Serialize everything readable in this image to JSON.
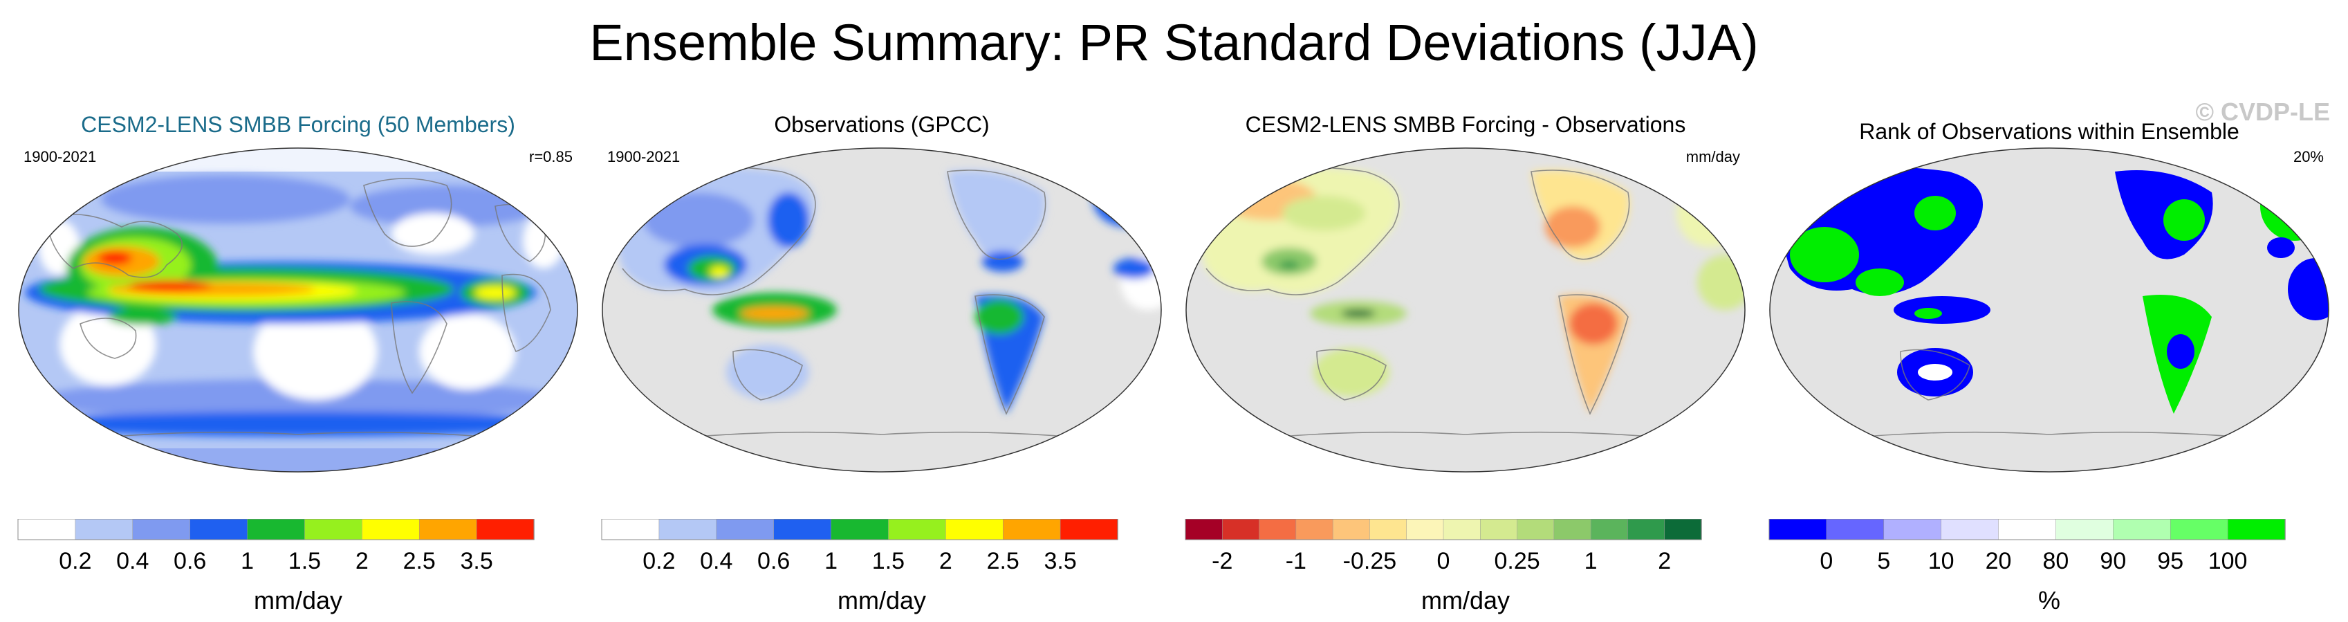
{
  "title": "Ensemble Summary: PR Standard Deviations (JJA)",
  "watermark": "© CVDP-LE",
  "colors": {
    "land_gray": "#e3e3e3",
    "coast": "#777777",
    "model_accent": "#1a6b8a"
  },
  "panels": [
    {
      "id": "model",
      "title": "CESM2-LENS SMBB Forcing (50 Members)",
      "left_text": "1900-2021",
      "right_text": "r=0.85",
      "style": "model",
      "colorbar": {
        "colors": [
          "#ffffff",
          "#b4c8f5",
          "#7f9af0",
          "#1f60f0",
          "#18b830",
          "#96f01e",
          "#ffff00",
          "#ffa500",
          "#ff1f00"
        ],
        "ticks": [
          "0.2",
          "0.4",
          "0.6",
          "1",
          "1.5",
          "2",
          "2.5",
          "3.5"
        ],
        "tick_mode": "edges",
        "units": "mm/day"
      }
    },
    {
      "id": "obs",
      "title": "Observations (GPCC)",
      "left_text": "1900-2021",
      "right_text": "",
      "style": "obs",
      "colorbar": {
        "colors": [
          "#ffffff",
          "#b4c8f5",
          "#7f9af0",
          "#1f60f0",
          "#18b830",
          "#96f01e",
          "#ffff00",
          "#ffa500",
          "#ff1f00"
        ],
        "ticks": [
          "0.2",
          "0.4",
          "0.6",
          "1",
          "1.5",
          "2",
          "2.5",
          "3.5"
        ],
        "tick_mode": "edges",
        "units": "mm/day"
      }
    },
    {
      "id": "diff",
      "title": "CESM2-LENS SMBB Forcing - Observations",
      "left_text": "",
      "right_text": "mm/day",
      "style": "diff",
      "colorbar": {
        "colors": [
          "#a50026",
          "#d73027",
          "#f46d43",
          "#f99a5c",
          "#fdc57a",
          "#fee590",
          "#fcf5b8",
          "#eef5b0",
          "#d4ea90",
          "#b3dc7a",
          "#8cc96a",
          "#5bb45c",
          "#2f9a4c",
          "#0c6b38"
        ],
        "ticks": [
          "-2",
          "-1",
          "-0.25",
          "0",
          "0.25",
          "1",
          "2"
        ],
        "tick_positions": [
          1,
          3,
          5,
          7,
          9,
          11,
          13
        ],
        "tick_mode": "edges_at",
        "units": "mm/day"
      }
    },
    {
      "id": "rank",
      "title": "Rank of Observations within Ensemble",
      "left_text": "",
      "right_text": "20%",
      "style": "rank",
      "colorbar": {
        "colors": [
          "#0000ff",
          "#6666ff",
          "#b0b0ff",
          "#e0e0ff",
          "#ffffff",
          "#e0ffe0",
          "#b0ffb0",
          "#66ff66",
          "#00ee00"
        ],
        "ticks": [
          "0",
          "5",
          "10",
          "20",
          "80",
          "90",
          "95",
          "100"
        ],
        "tick_mode": "edges",
        "units": "%"
      }
    }
  ]
}
